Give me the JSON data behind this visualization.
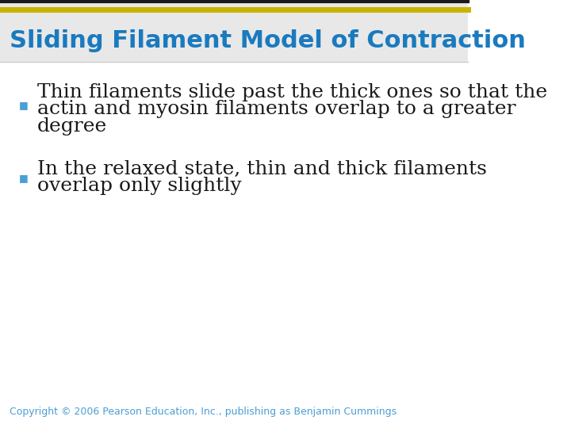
{
  "title": "Sliding Filament Model of Contraction",
  "title_color": "#1a7abf",
  "title_fontsize": 22,
  "title_fontstyle": "bold",
  "header_bar_color1": "#1a1a1a",
  "header_bar_color2": "#c8b400",
  "bullet_color": "#4a9fd4",
  "bullet_char": "■",
  "bullet1_line1": "Thin filaments slide past the thick ones so that the",
  "bullet1_line2": "actin and myosin filaments overlap to a greater",
  "bullet1_line3": "degree",
  "bullet2_line1": "In the relaxed state, thin and thick filaments",
  "bullet2_line2": "overlap only slightly",
  "body_fontsize": 18,
  "body_color": "#1a1a1a",
  "copyright_text": "Copyright © 2006 Pearson Education, Inc., publishing as Benjamin Cummings",
  "copyright_color": "#4a9fd4",
  "copyright_fontsize": 9,
  "bg_color": "#ffffff",
  "header_bg_color": "#e8e8e8"
}
